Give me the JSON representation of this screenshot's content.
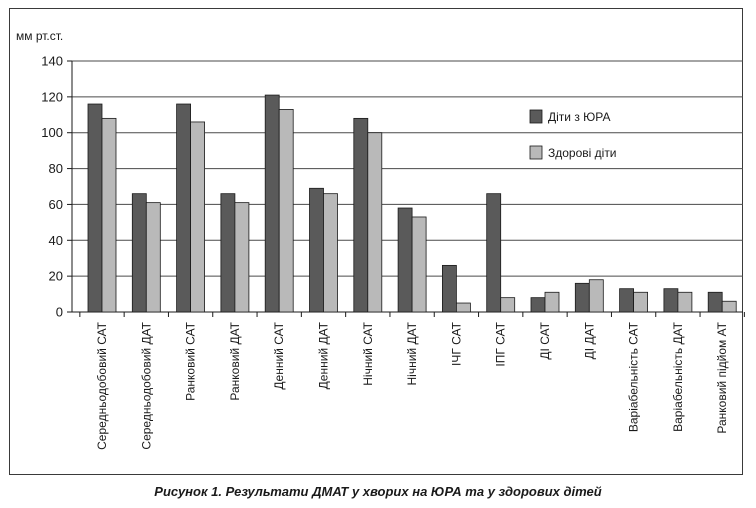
{
  "caption": "Рисунок 1. Результати ДМАТ у хворих на ЮРА та у здорових дітей",
  "colors": {
    "series_dark": "#5a5a5a",
    "series_light": "#b9b9b9",
    "grid": "#4a4a4a",
    "outline": "#1a1a1a"
  },
  "chart_data": {
    "type": "bar",
    "title": "",
    "xlabel": "",
    "ylabel": "мм рт.ст.",
    "ylim": [
      0,
      140
    ],
    "yticks": [
      0,
      20,
      40,
      60,
      80,
      100,
      120,
      140
    ],
    "grid": true,
    "legend_position": "right",
    "categories": [
      "Середньодобовий САТ",
      "Середньодобовий ДАТ",
      "Ранковий САТ",
      "Ранковий ДАТ",
      "Денний САТ",
      "Денний ДАТ",
      "Нічний САТ",
      "Нічний ДАТ",
      "ІЧГ САТ",
      "ІПГ САТ",
      "ДІ САТ",
      "ДІ ДАТ",
      "Варіабельність САТ",
      "Варіабельність ДАТ",
      "Ранковий підйом АТ"
    ],
    "series": [
      {
        "name": "Діти з ЮРА",
        "color": "#5a5a5a",
        "values": [
          116,
          66,
          116,
          66,
          121,
          69,
          108,
          58,
          26,
          66,
          8,
          16,
          13,
          13,
          11
        ]
      },
      {
        "name": "Здорові діти",
        "color": "#b9b9b9",
        "values": [
          108,
          61,
          106,
          61,
          113,
          66,
          100,
          53,
          5,
          8,
          11,
          18,
          11,
          11,
          6
        ]
      }
    ]
  }
}
